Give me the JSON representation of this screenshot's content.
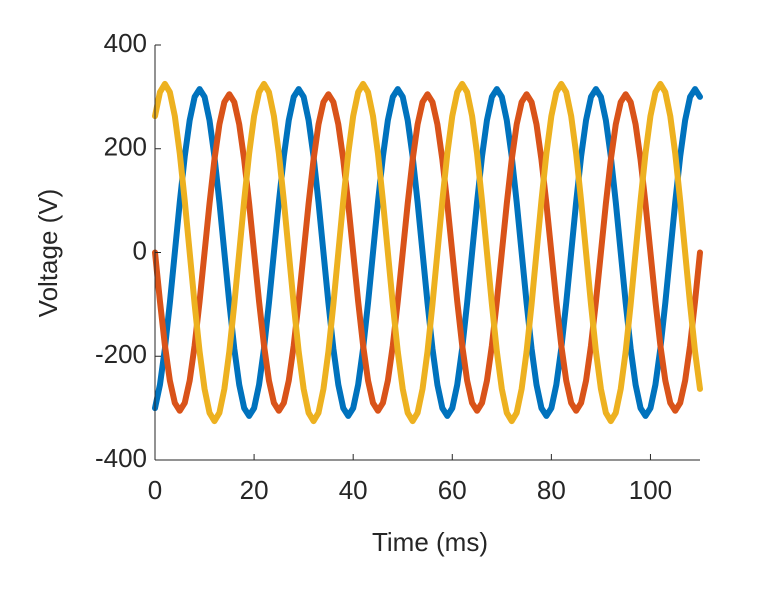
{
  "chart_data": {
    "type": "line",
    "x_label": "Time (ms)",
    "y_label": "Voltage (V)",
    "xlim": [
      0,
      110
    ],
    "xticks": [
      0,
      20,
      40,
      60,
      80,
      100
    ],
    "ylim": [
      -400,
      400
    ],
    "yticks": [
      -400,
      -200,
      0,
      200,
      400
    ],
    "grid": false,
    "x": [
      0,
      1,
      2,
      3,
      4,
      5,
      6,
      7,
      8,
      9,
      10,
      11,
      12,
      13,
      14,
      15,
      16,
      17,
      18,
      19,
      20,
      21,
      22,
      23,
      24,
      25,
      26,
      27,
      28,
      29,
      30,
      31,
      32,
      33,
      34,
      35,
      36,
      37,
      38,
      39,
      40,
      41,
      42,
      43,
      44,
      45,
      46,
      47,
      48,
      49,
      50,
      51,
      52,
      53,
      54,
      55,
      56,
      57,
      58,
      59,
      60,
      61,
      62,
      63,
      64,
      65,
      66,
      67,
      68,
      69,
      70,
      71,
      72,
      73,
      74,
      75,
      76,
      77,
      78,
      79,
      80,
      81,
      82,
      83,
      84,
      85,
      86,
      87,
      88,
      89,
      90,
      91,
      92,
      93,
      94,
      95,
      96,
      97,
      98,
      99,
      100,
      101,
      102,
      103,
      104,
      105,
      106,
      107,
      108,
      109,
      110
    ],
    "series": [
      {
        "color": "#0072BD",
        "values": [
          -300,
          -255,
          -185,
          -97,
          0,
          97,
          185,
          255,
          300,
          315,
          300,
          255,
          185,
          97,
          0,
          -97,
          -185,
          -255,
          -300,
          -315,
          -300,
          -255,
          -185,
          -97,
          0,
          97,
          185,
          255,
          300,
          315,
          300,
          255,
          185,
          97,
          0,
          -97,
          -185,
          -255,
          -300,
          -315,
          -300,
          -255,
          -185,
          -97,
          0,
          97,
          185,
          255,
          300,
          315,
          300,
          255,
          185,
          97,
          0,
          -97,
          -185,
          -255,
          -300,
          -315,
          -300,
          -255,
          -185,
          -97,
          0,
          97,
          185,
          255,
          300,
          315,
          300,
          255,
          185,
          97,
          0,
          -97,
          -185,
          -255,
          -300,
          -315,
          -300,
          -255,
          -185,
          -97,
          0,
          97,
          185,
          255,
          300,
          315,
          300,
          255,
          185,
          97,
          0,
          -97,
          -185,
          -255,
          -300,
          -315,
          -300,
          -255,
          -185,
          -97,
          0,
          97,
          185,
          255,
          300,
          315,
          300
        ]
      },
      {
        "color": "#D95319",
        "values": [
          0,
          -94,
          -179,
          -247,
          -290,
          -305,
          -290,
          -247,
          -179,
          -94,
          0,
          94,
          179,
          247,
          290,
          305,
          290,
          247,
          179,
          94,
          0,
          -94,
          -179,
          -247,
          -290,
          -305,
          -290,
          -247,
          -179,
          -94,
          0,
          94,
          179,
          247,
          290,
          305,
          290,
          247,
          179,
          94,
          0,
          -94,
          -179,
          -247,
          -290,
          -305,
          -290,
          -247,
          -179,
          -94,
          0,
          94,
          179,
          247,
          290,
          305,
          290,
          247,
          179,
          94,
          0,
          -94,
          -179,
          -247,
          -290,
          -305,
          -290,
          -247,
          -179,
          -94,
          0,
          94,
          179,
          247,
          290,
          305,
          290,
          247,
          179,
          94,
          0,
          -94,
          -179,
          -247,
          -290,
          -305,
          -290,
          -247,
          -179,
          -94,
          0,
          94,
          179,
          247,
          290,
          305,
          290,
          247,
          179,
          94,
          0,
          -94,
          -179,
          -247,
          -290,
          -305,
          -290,
          -247,
          -179,
          -94,
          0
        ]
      },
      {
        "color": "#EDB120",
        "values": [
          263,
          309,
          325,
          309,
          263,
          191,
          100,
          0,
          -100,
          -191,
          -263,
          -309,
          -325,
          -309,
          -263,
          -191,
          -100,
          0,
          100,
          191,
          263,
          309,
          325,
          309,
          263,
          191,
          100,
          0,
          -100,
          -191,
          -263,
          -309,
          -325,
          -309,
          -263,
          -191,
          -100,
          0,
          100,
          191,
          263,
          309,
          325,
          309,
          263,
          191,
          100,
          0,
          -100,
          -191,
          -263,
          -309,
          -325,
          -309,
          -263,
          -191,
          -100,
          0,
          100,
          191,
          263,
          309,
          325,
          309,
          263,
          191,
          100,
          0,
          -100,
          -191,
          -263,
          -309,
          -325,
          -309,
          -263,
          -191,
          -100,
          0,
          100,
          191,
          263,
          309,
          325,
          309,
          263,
          191,
          100,
          0,
          -100,
          -191,
          -263,
          -309,
          -325,
          -309,
          -263,
          -191,
          -100,
          0,
          100,
          191,
          263,
          309,
          325,
          309,
          263,
          191,
          100,
          0,
          -100,
          -191,
          -263
        ]
      }
    ]
  }
}
